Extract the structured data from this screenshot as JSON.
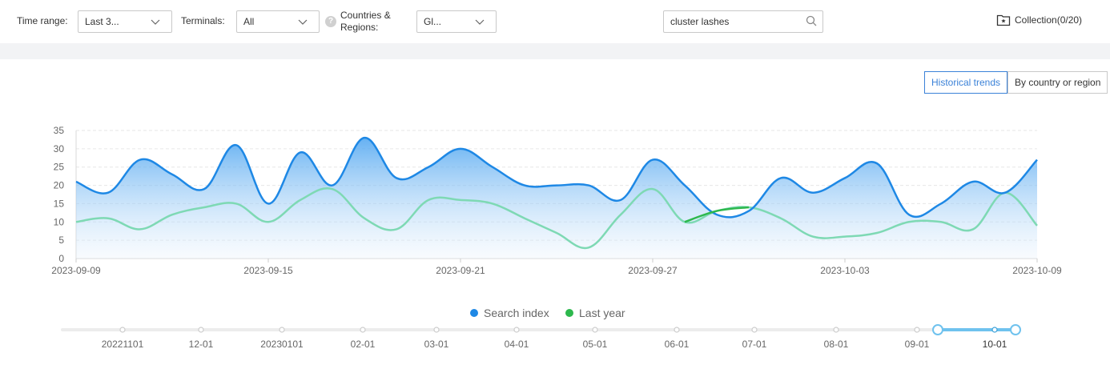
{
  "filters": {
    "time_range_label": "Time range:",
    "time_range_value": "Last 3...",
    "terminals_label": "Terminals:",
    "terminals_value": "All",
    "regions_label_line1": "Countries &",
    "regions_label_line2": "Regions:",
    "regions_value": "Gl...",
    "help_glyph": "?"
  },
  "search": {
    "value": "cluster lashes"
  },
  "collection": {
    "label": "Collection(0/20)"
  },
  "view_toggle": {
    "historical": "Historical trends",
    "by_country": "By country or region",
    "active": "historical"
  },
  "colors": {
    "search_index": "#1e88e5",
    "last_year": "#7ed9b4",
    "last_year_highlight": "#2db84d",
    "accent": "#3b82d8"
  },
  "chart_data": {
    "type": "area",
    "x_ticks": [
      "2023-09-09",
      "2023-09-15",
      "2023-09-21",
      "2023-09-27",
      "2023-10-03",
      "2023-10-09"
    ],
    "ylim": [
      0,
      35
    ],
    "y_ticks": [
      0,
      5,
      10,
      15,
      20,
      25,
      30,
      35
    ],
    "grid": true,
    "legend_position": "bottom",
    "x": [
      "2023-09-09",
      "2023-09-10",
      "2023-09-11",
      "2023-09-12",
      "2023-09-13",
      "2023-09-14",
      "2023-09-15",
      "2023-09-16",
      "2023-09-17",
      "2023-09-18",
      "2023-09-19",
      "2023-09-20",
      "2023-09-21",
      "2023-09-22",
      "2023-09-23",
      "2023-09-24",
      "2023-09-25",
      "2023-09-26",
      "2023-09-27",
      "2023-09-28",
      "2023-09-29",
      "2023-09-30",
      "2023-10-01",
      "2023-10-02",
      "2023-10-03",
      "2023-10-04",
      "2023-10-05",
      "2023-10-06",
      "2023-10-07",
      "2023-10-08",
      "2023-10-09"
    ],
    "series": [
      {
        "name": "Search index",
        "values": [
          21,
          18,
          27,
          23,
          19,
          31,
          15,
          29,
          20,
          33,
          22,
          25,
          30,
          25,
          20,
          20,
          20,
          16,
          27,
          20,
          12,
          13,
          22,
          18,
          22,
          26,
          12,
          15,
          21,
          18,
          27
        ]
      },
      {
        "name": "Last year",
        "values": [
          10,
          11,
          8,
          12,
          14,
          15,
          10,
          16,
          19,
          11,
          8,
          16,
          16,
          15,
          11,
          7,
          3,
          12,
          19,
          10,
          13,
          14,
          11,
          6,
          6,
          7,
          10,
          10,
          8,
          18,
          9
        ]
      }
    ]
  },
  "timeline": {
    "labels": [
      "20221101",
      "12-01",
      "20230101",
      "02-01",
      "03-01",
      "04-01",
      "05-01",
      "06-01",
      "07-01",
      "08-01",
      "09-01",
      "10-01"
    ],
    "selected": "10-01"
  }
}
